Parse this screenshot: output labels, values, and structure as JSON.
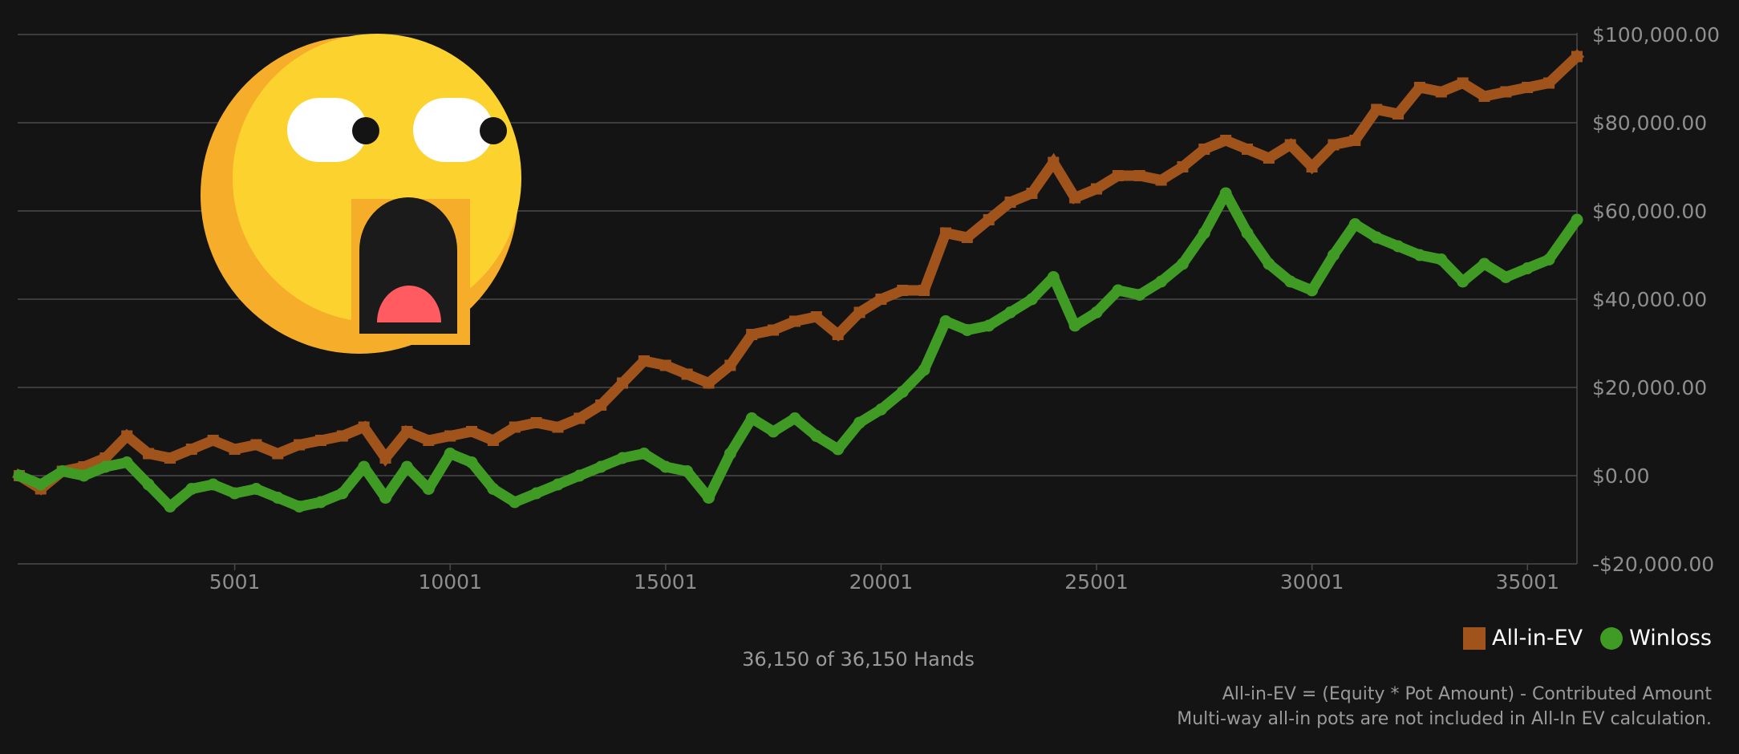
{
  "chart_data": {
    "type": "line",
    "x_tick_labels": [
      "5001",
      "10001",
      "15001",
      "20001",
      "25001",
      "30001",
      "35001"
    ],
    "x_ticks": [
      5001,
      10001,
      15001,
      20001,
      25001,
      30001,
      35001
    ],
    "xlim": [
      1,
      36150
    ],
    "y_tick_labels": [
      "$100,000.00",
      "$80,000.00",
      "$60,000.00",
      "$40,000.00",
      "$20,000.00",
      "$0.00",
      "-$20,000.00"
    ],
    "y_ticks": [
      100000,
      80000,
      60000,
      40000,
      20000,
      0,
      -20000
    ],
    "ylim": [
      -20000,
      100000
    ],
    "grid": true,
    "legend_position": "bottom-right",
    "x": [
      1,
      500,
      1000,
      1500,
      2000,
      2500,
      3000,
      3500,
      4000,
      4500,
      5000,
      5500,
      6000,
      6500,
      7000,
      7500,
      8000,
      8500,
      9000,
      9500,
      10000,
      10500,
      11000,
      11500,
      12000,
      12500,
      13000,
      13500,
      14000,
      14500,
      15000,
      15500,
      16000,
      16500,
      17000,
      17500,
      18000,
      18500,
      19000,
      19500,
      20000,
      20500,
      21000,
      21500,
      22000,
      22500,
      23000,
      23500,
      24000,
      24500,
      25000,
      25500,
      26000,
      26500,
      27000,
      27500,
      28000,
      28500,
      29000,
      29500,
      30000,
      30500,
      31000,
      31500,
      32000,
      32500,
      33000,
      33500,
      34000,
      34500,
      35000,
      35500,
      36150
    ],
    "series": [
      {
        "name": "All-in-EV",
        "color": "#a0541c",
        "marker": "square",
        "values": [
          0,
          -3000,
          1000,
          2000,
          4000,
          9000,
          5000,
          4000,
          6000,
          8000,
          6000,
          7000,
          5000,
          7000,
          8000,
          9000,
          11000,
          4000,
          10000,
          8000,
          9000,
          10000,
          8000,
          11000,
          12000,
          11000,
          13000,
          16000,
          21000,
          26000,
          25000,
          23000,
          21000,
          25000,
          32000,
          33000,
          35000,
          36000,
          32000,
          37000,
          40000,
          42000,
          42000,
          55000,
          54000,
          58000,
          62000,
          64000,
          71000,
          63000,
          65000,
          68000,
          68000,
          67000,
          70000,
          74000,
          76000,
          74000,
          72000,
          75000,
          70000,
          75000,
          76000,
          83000,
          82000,
          88000,
          87000,
          89000,
          86000,
          87000,
          88000,
          89000,
          95000
        ]
      },
      {
        "name": "Winloss",
        "color": "#3f9b24",
        "marker": "circle",
        "values": [
          0,
          -2000,
          1000,
          0,
          2000,
          3000,
          -2000,
          -7000,
          -3000,
          -2000,
          -4000,
          -3000,
          -5000,
          -7000,
          -6000,
          -4000,
          2000,
          -5000,
          2000,
          -3000,
          5000,
          3000,
          -3000,
          -6000,
          -4000,
          -2000,
          0,
          2000,
          4000,
          5000,
          2000,
          1000,
          -5000,
          5000,
          13000,
          10000,
          13000,
          9000,
          6000,
          12000,
          15000,
          19000,
          24000,
          35000,
          33000,
          34000,
          37000,
          40000,
          45000,
          34000,
          37000,
          42000,
          41000,
          44000,
          48000,
          55000,
          64000,
          55000,
          48000,
          44000,
          42000,
          50000,
          57000,
          54000,
          52000,
          50000,
          49000,
          44000,
          48000,
          45000,
          47000,
          49000,
          58000
        ]
      }
    ]
  },
  "legend": {
    "ev_label": "All-in-EV",
    "winloss_label": "Winloss"
  },
  "footer": {
    "hands": "36,150 of 36,150 Hands",
    "note1": "All-in-EV = (Equity * Pot Amount) - Contributed Amount",
    "note2": "Multi-way all-in pots are not included in All-In EV calculation."
  },
  "icons": {
    "emoji": "astonished-face-icon"
  },
  "colors": {
    "background": "#141414",
    "grid": "#4a4a4a",
    "tick_text": "#8e8e8e",
    "emoji_face": "#fcd22f",
    "emoji_shadow": "#f6ae2a"
  }
}
